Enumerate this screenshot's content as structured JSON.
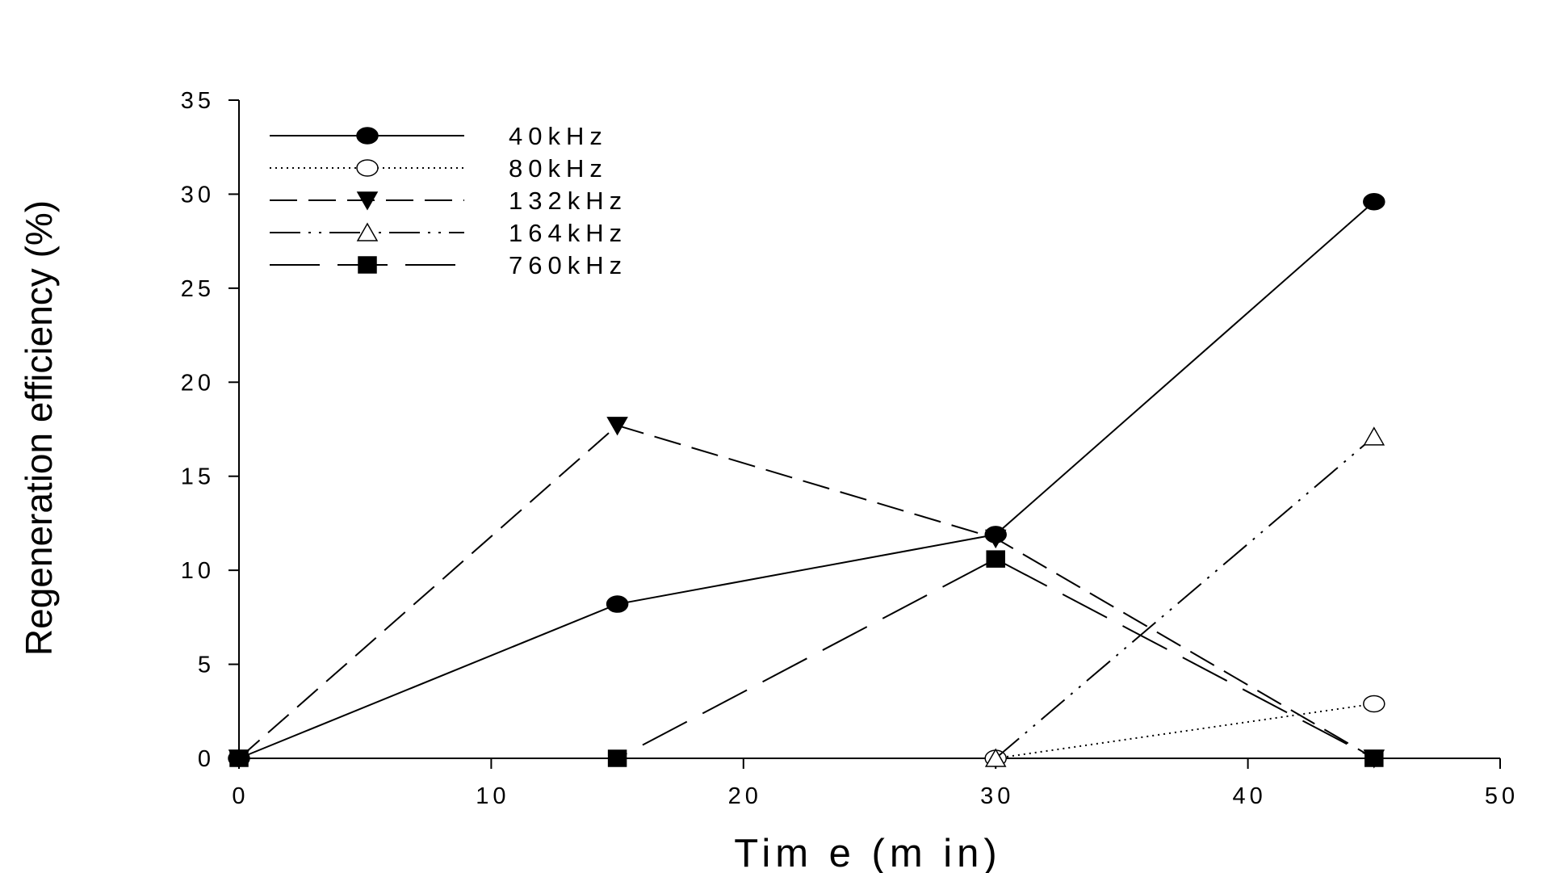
{
  "chart_data": {
    "type": "line",
    "xlabel": "Tim e  (m in)",
    "ylabel": "Regeneration efficiency (%)",
    "xlim": [
      0,
      50
    ],
    "ylim": [
      0,
      35
    ],
    "xticks": [
      0,
      10,
      20,
      30,
      40,
      50
    ],
    "yticks": [
      0,
      5,
      10,
      15,
      20,
      25,
      30,
      35
    ],
    "grid": false,
    "legend_position": "top-left",
    "series": [
      {
        "name": "40kHz",
        "marker": "filled-circle",
        "line": "solid",
        "x": [
          0,
          15,
          30,
          45
        ],
        "y": [
          0,
          8.2,
          11.9,
          29.6
        ]
      },
      {
        "name": "80kHz",
        "marker": "open-circle",
        "line": "dotted",
        "x": [
          30,
          45
        ],
        "y": [
          0,
          2.9
        ]
      },
      {
        "name": "132kHz",
        "marker": "filled-triangle-down",
        "line": "short-dash",
        "x": [
          0,
          15,
          30,
          45
        ],
        "y": [
          0,
          17.7,
          11.7,
          0
        ]
      },
      {
        "name": "164kHz",
        "marker": "open-triangle-up",
        "line": "dash-dot-dot",
        "x": [
          30,
          45
        ],
        "y": [
          0,
          17.1
        ]
      },
      {
        "name": "760kHz",
        "marker": "filled-square",
        "line": "long-dash",
        "x": [
          0,
          15,
          30,
          45
        ],
        "y": [
          0,
          0,
          10.6,
          0
        ]
      }
    ]
  }
}
